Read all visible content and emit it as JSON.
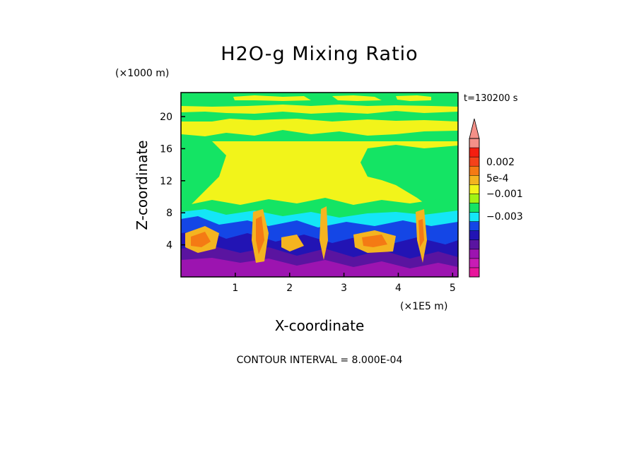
{
  "chart_data": {
    "type": "heatmap",
    "title": "H2O-g Mixing Ratio",
    "xlabel": "X-coordinate",
    "ylabel": "Z-coordinate",
    "x_unit": "(×1E5 m)",
    "y_unit": "(×1000 m)",
    "time_label": "t=130200 s",
    "contour_label": "CONTOUR INTERVAL = 8.000E-04",
    "x_ticks": [
      "1",
      "2",
      "3",
      "4",
      "5"
    ],
    "y_ticks": [
      "4",
      "8",
      "12",
      "16",
      "20"
    ],
    "xlim": [
      0,
      5.1
    ],
    "ylim": [
      0,
      23
    ],
    "colorbar": {
      "labels": [
        "0.002",
        "5e-4",
        "−0.001",
        "−0.003"
      ],
      "colors": [
        "#e8169c",
        "#c81cb4",
        "#9c14b0",
        "#5a14a0",
        "#2214b4",
        "#1446e6",
        "#14e6f6",
        "#14e464",
        "#a0f414",
        "#f2f41a",
        "#f4b420",
        "#f47a14",
        "#f4421a",
        "#f41e10",
        "#f49088"
      ]
    }
  }
}
